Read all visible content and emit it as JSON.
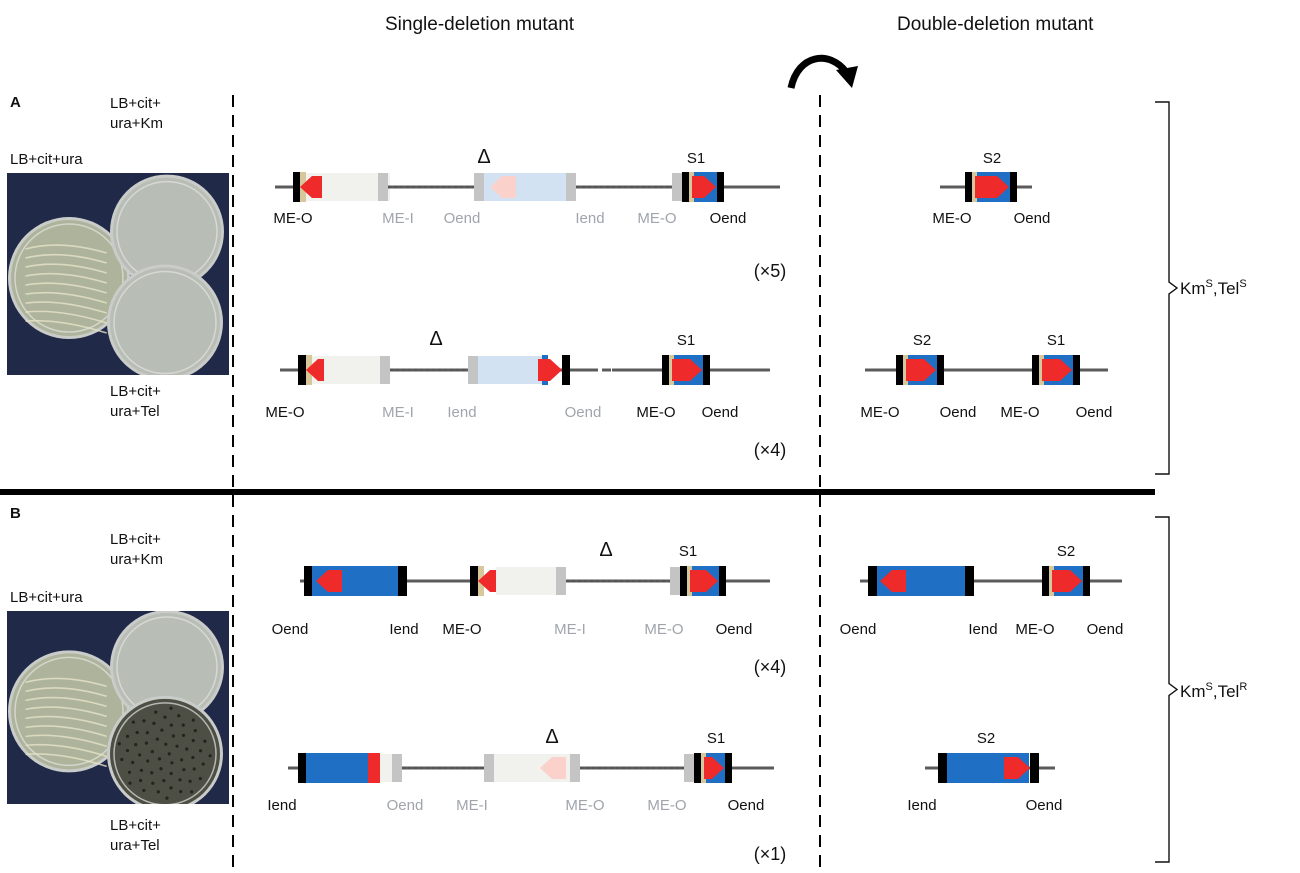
{
  "headers": {
    "single": "Single-deletion mutant",
    "double": "Double-deletion mutant"
  },
  "panels": [
    {
      "letter": "A",
      "plate_labels": {
        "top": [
          "LB+cit+",
          "ura+Km"
        ],
        "middle": "LB+cit+ura",
        "bottom": [
          "LB+cit+",
          "ura+Tel"
        ]
      },
      "phenotype": {
        "main": "Km",
        "sup1": "S",
        "mid": ",Tel",
        "sup2": "S"
      },
      "plate_growth": [
        "heavy",
        "none",
        "none"
      ]
    },
    {
      "letter": "B",
      "plate_labels": {
        "top": [
          "LB+cit+",
          "ura+Km"
        ],
        "middle": "LB+cit+ura",
        "bottom": [
          "LB+cit+",
          "ura+Tel"
        ]
      },
      "phenotype": {
        "main": "Km",
        "sup1": "S",
        "mid": ",Tel",
        "sup2": "R"
      },
      "plate_growth": [
        "heavy",
        "none",
        "dark"
      ]
    }
  ],
  "constructs": [
    {
      "id": "a1",
      "delta": "Δ",
      "count": "(×5)",
      "tags": [
        {
          "text": "S1",
          "gray": false
        }
      ],
      "labels": [
        {
          "text": "ME-O",
          "gray": false
        },
        {
          "text": "ME-I",
          "gray": true
        },
        {
          "text": "Oend",
          "gray": true
        },
        {
          "text": "Iend",
          "gray": true
        },
        {
          "text": "ME-O",
          "gray": true
        },
        {
          "text": "Oend",
          "gray": false
        }
      ]
    },
    {
      "id": "a1d",
      "tags": [
        {
          "text": "S2",
          "gray": false
        }
      ],
      "labels": [
        {
          "text": "ME-O",
          "gray": false
        },
        {
          "text": "Oend",
          "gray": false
        }
      ]
    },
    {
      "id": "a2",
      "delta": "Δ",
      "count": "(×4)",
      "tags": [
        {
          "text": "S1",
          "gray": false
        }
      ],
      "labels": [
        {
          "text": "ME-O",
          "gray": false
        },
        {
          "text": "ME-I",
          "gray": true
        },
        {
          "text": "Iend",
          "gray": true
        },
        {
          "text": "Oend",
          "gray": true
        },
        {
          "text": "ME-O",
          "gray": false
        },
        {
          "text": "Oend",
          "gray": false
        }
      ]
    },
    {
      "id": "a2d",
      "tags": [
        {
          "text": "S2",
          "gray": false
        },
        {
          "text": "S1",
          "gray": false
        }
      ],
      "labels": [
        {
          "text": "ME-O",
          "gray": false
        },
        {
          "text": "Oend",
          "gray": false
        },
        {
          "text": "ME-O",
          "gray": false
        },
        {
          "text": "Oend",
          "gray": false
        }
      ]
    },
    {
      "id": "b1",
      "delta": "Δ",
      "count": "(×4)",
      "tags": [
        {
          "text": "S1",
          "gray": false
        }
      ],
      "labels": [
        {
          "text": "Oend",
          "gray": false
        },
        {
          "text": "Iend",
          "gray": false
        },
        {
          "text": "ME-O",
          "gray": false
        },
        {
          "text": "ME-I",
          "gray": true
        },
        {
          "text": "ME-O",
          "gray": true
        },
        {
          "text": "Oend",
          "gray": false
        }
      ]
    },
    {
      "id": "b1d",
      "tags": [
        {
          "text": "S2",
          "gray": false
        }
      ],
      "labels": [
        {
          "text": "Oend",
          "gray": false
        },
        {
          "text": "Iend",
          "gray": false
        },
        {
          "text": "ME-O",
          "gray": false
        },
        {
          "text": "Oend",
          "gray": false
        }
      ]
    },
    {
      "id": "b2",
      "delta": "Δ",
      "count": "(×1)",
      "tags": [
        {
          "text": "S1",
          "gray": false
        }
      ],
      "labels": [
        {
          "text": "Iend",
          "gray": false
        },
        {
          "text": "Oend",
          "gray": true
        },
        {
          "text": "ME-I",
          "gray": true
        },
        {
          "text": "ME-O",
          "gray": true
        },
        {
          "text": "ME-O",
          "gray": true
        },
        {
          "text": "Oend",
          "gray": false
        }
      ]
    },
    {
      "id": "b2d",
      "tags": [
        {
          "text": "S2",
          "gray": false
        }
      ],
      "labels": [
        {
          "text": "Iend",
          "gray": false
        },
        {
          "text": "Oend",
          "gray": false
        }
      ]
    }
  ],
  "colors": {
    "ink": "#111111",
    "gray_text": "#a0a4ab",
    "line": "#5b5b5b",
    "blue": "#1f6fc5",
    "red": "#ee2a2a",
    "black_block": "#000000",
    "cream": "#d8c79a",
    "ghost_white": "#f1f1ee",
    "ghost_blue": "#d3e2f3",
    "ghost_red": "#fad2cb",
    "ghost_edge": "#c4c4c4",
    "photo_bg": "#202a48"
  }
}
